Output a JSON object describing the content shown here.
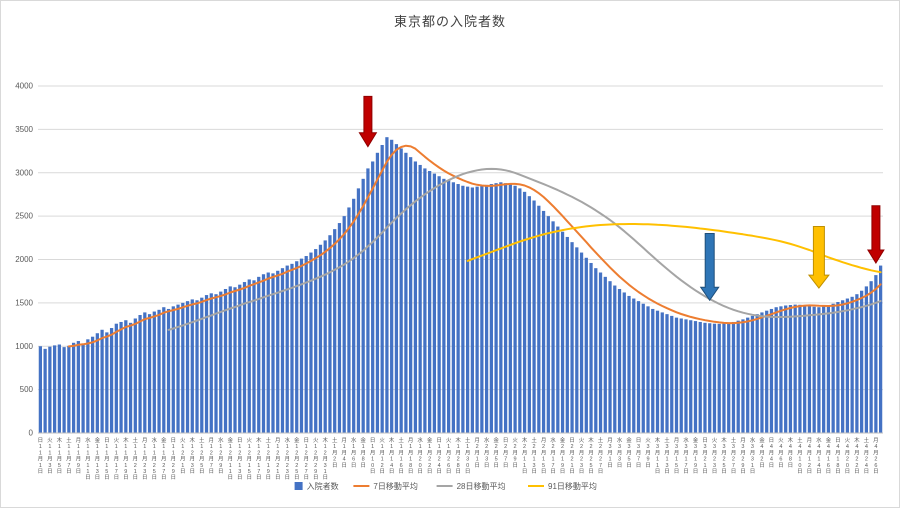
{
  "page": {
    "title": "東京都の入院者数"
  },
  "chart_data": {
    "type": "bar",
    "title": "東京都の入院者数",
    "xlabel": "",
    "ylabel": "",
    "ylim": [
      0,
      4000
    ],
    "y_ticks": [
      0,
      500,
      1000,
      1500,
      2000,
      2500,
      3000,
      3500,
      4000
    ],
    "grid": true,
    "legend_position": "bottom",
    "start_date": "2020-11-01",
    "x_label_every_n_days": 2,
    "weekday_labels": [
      "日",
      "月",
      "火",
      "水",
      "木",
      "金",
      "土"
    ],
    "colors": {
      "bar": "#4472c4",
      "grid": "#d9d9d9",
      "axis": "#bfbfbf",
      "tick_text": "#595959",
      "title_text": "#404040"
    },
    "values": [
      1000,
      970,
      995,
      1010,
      1020,
      990,
      1005,
      1040,
      1060,
      1030,
      1080,
      1110,
      1150,
      1190,
      1160,
      1210,
      1260,
      1280,
      1300,
      1270,
      1320,
      1360,
      1390,
      1370,
      1400,
      1420,
      1450,
      1430,
      1460,
      1480,
      1500,
      1520,
      1540,
      1530,
      1560,
      1590,
      1610,
      1600,
      1630,
      1660,
      1690,
      1680,
      1710,
      1740,
      1770,
      1760,
      1800,
      1830,
      1850,
      1840,
      1870,
      1900,
      1930,
      1950,
      1980,
      2010,
      2040,
      2080,
      2120,
      2170,
      2220,
      2280,
      2350,
      2420,
      2500,
      2600,
      2700,
      2820,
      2930,
      3050,
      3130,
      3230,
      3320,
      3410,
      3380,
      3330,
      3280,
      3230,
      3180,
      3130,
      3090,
      3050,
      3020,
      2990,
      2960,
      2930,
      2910,
      2890,
      2870,
      2850,
      2840,
      2830,
      2840,
      2850,
      2860,
      2870,
      2880,
      2890,
      2880,
      2870,
      2850,
      2820,
      2780,
      2730,
      2680,
      2620,
      2560,
      2500,
      2440,
      2380,
      2320,
      2260,
      2200,
      2140,
      2080,
      2020,
      1960,
      1900,
      1850,
      1800,
      1750,
      1700,
      1660,
      1620,
      1580,
      1550,
      1520,
      1490,
      1460,
      1430,
      1410,
      1390,
      1370,
      1350,
      1330,
      1320,
      1310,
      1300,
      1290,
      1280,
      1270,
      1265,
      1260,
      1258,
      1262,
      1270,
      1280,
      1295,
      1310,
      1330,
      1350,
      1370,
      1390,
      1410,
      1430,
      1450,
      1460,
      1470,
      1475,
      1480,
      1478,
      1470,
      1460,
      1455,
      1450,
      1460,
      1475,
      1490,
      1510,
      1530,
      1550,
      1570,
      1600,
      1640,
      1690,
      1750,
      1820,
      1930
    ],
    "series": [
      {
        "name": "入院者数",
        "type": "bar",
        "color": "#4472c4"
      },
      {
        "name": "7日移動平均",
        "type": "moving_average",
        "window": 7,
        "color": "#ed7d31"
      },
      {
        "name": "28日移動平均",
        "type": "moving_average",
        "window": 28,
        "color": "#a5a5a5"
      },
      {
        "name": "91日移動平均",
        "type": "moving_average",
        "window": 91,
        "color": "#ffc000"
      }
    ],
    "annotations": [
      {
        "type": "arrow-down",
        "color": "#c00000",
        "stroke": "#8f0000",
        "day_index": 69,
        "from_value": 3880,
        "to_value": 3300,
        "shaft_w": 8,
        "head_w": 17,
        "head_h": 14
      },
      {
        "type": "arrow-down",
        "color": "#2e75b6",
        "stroke": "#1f4e79",
        "day_index": 141,
        "from_value": 2300,
        "to_value": 1530,
        "shaft_w": 9,
        "head_w": 18,
        "head_h": 13
      },
      {
        "type": "arrow-down",
        "color": "#ffc000",
        "stroke": "#bf8f00",
        "day_index": 164,
        "from_value": 2380,
        "to_value": 1670,
        "shaft_w": 11,
        "head_w": 20,
        "head_h": 13
      },
      {
        "type": "arrow-down",
        "color": "#c00000",
        "stroke": "#8f0000",
        "day_index": 176,
        "from_value": 2620,
        "to_value": 1960,
        "shaft_w": 8,
        "head_w": 16,
        "head_h": 13
      }
    ]
  }
}
